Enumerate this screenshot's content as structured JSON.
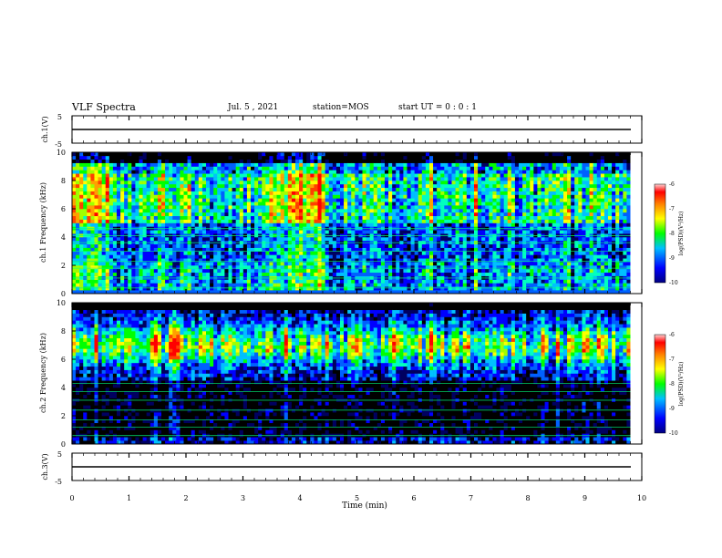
{
  "header": {
    "title": "VLF Spectra",
    "date": "Jul. 5 , 2021",
    "station": "station=MOS",
    "start": "start UT = 0 : 0 : 1"
  },
  "colors": {
    "low": "#000000",
    "blue": "#0000ff",
    "cyan": "#00c0ff",
    "green": "#00ff00",
    "yellow": "#ffff00",
    "orange": "#ff8000",
    "red": "#ff0000",
    "pink": "#ffc0c0"
  },
  "chart_data": [
    {
      "type": "line",
      "panel": "ch1-waveform",
      "ylabel": "ch.1(V)",
      "yticks": [
        "5",
        "-5"
      ],
      "ylim": [
        -5,
        5
      ],
      "xlim": [
        0,
        10
      ],
      "series": [
        {
          "values_note_free": true,
          "x": [
            0,
            9.8
          ],
          "y": [
            0,
            0
          ]
        }
      ]
    },
    {
      "type": "heatmap",
      "panel": "ch1-spectrogram",
      "ylabel": "ch.1 Frequency (kHz)",
      "yticks": [
        "0",
        "2",
        "4",
        "6",
        "8",
        "10"
      ],
      "ylim": [
        0,
        10
      ],
      "xlim": [
        0,
        10
      ],
      "colorbar": {
        "label": "log(PSD)(V²/Hz)",
        "ticks": [
          "-6",
          "-7",
          "-8",
          "-9",
          "-10"
        ],
        "range": [
          -10,
          -6
        ]
      },
      "bright_intervals_min": [
        [
          0,
          0.72
        ],
        [
          3.35,
          4.45
        ],
        [
          8.6,
          8.75
        ]
      ],
      "end_time_min": 9.8
    },
    {
      "type": "heatmap",
      "panel": "ch2-spectrogram",
      "ylabel": "ch.2 Frequency (kHz)",
      "yticks": [
        "0",
        "2",
        "4",
        "6",
        "8",
        "10"
      ],
      "ylim": [
        0,
        10
      ],
      "xlim": [
        0,
        10
      ],
      "colorbar": {
        "label": "log(PSD)(V²/Hz)",
        "ticks": [
          "-6",
          "-7",
          "-8",
          "-9",
          "-10"
        ],
        "range": [
          -10,
          -6
        ]
      },
      "band_peak_khz": [
        6,
        8
      ],
      "end_time_min": 9.8
    },
    {
      "type": "line",
      "panel": "ch3-waveform",
      "ylabel": "ch.3(V)",
      "yticks": [
        "5",
        "-5"
      ],
      "ylim": [
        -5,
        5
      ],
      "xlim": [
        0,
        10
      ],
      "xlabel": "Time (min)",
      "xticks": [
        "0",
        "1",
        "2",
        "3",
        "4",
        "5",
        "6",
        "7",
        "8",
        "9",
        "10"
      ],
      "series": [
        {
          "x": [
            0,
            9.8
          ],
          "y": [
            0,
            0
          ]
        }
      ]
    }
  ]
}
